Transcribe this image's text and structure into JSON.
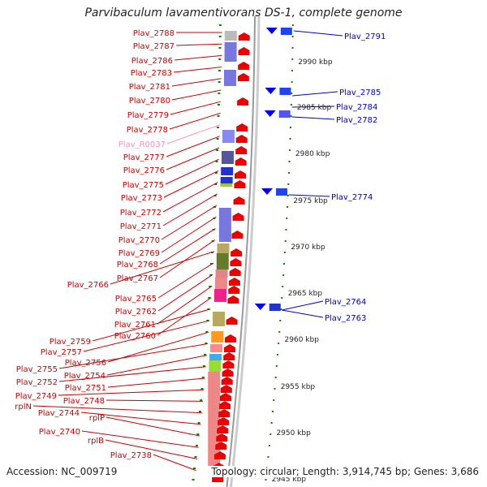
{
  "title": "Parvibaculum lavamentivorans DS-1, complete genome",
  "accession": "Accession: NC_009719",
  "topology": "Topology: circular; Length: 3,914,745 bp; Genes: 3,686",
  "colors": {
    "left_label": "#cc0000",
    "right_label": "#0000cc",
    "rna_label": "#ff8fbf",
    "feature_red": "#ee0000",
    "feature_blue": "#0000ee",
    "tick_green": "#008800",
    "backbone": "#999999"
  },
  "left_labels": [
    {
      "text": "Plav_2788"
    },
    {
      "text": "Plav_2787"
    },
    {
      "text": "Plav_2786"
    },
    {
      "text": "Plav_2783"
    },
    {
      "text": "Plav_2781"
    },
    {
      "text": "Plav_2780"
    },
    {
      "text": "Plav_2779"
    },
    {
      "text": "Plav_2778"
    },
    {
      "text": "Plav_R0037",
      "rna": true
    },
    {
      "text": "Plav_2777"
    },
    {
      "text": "Plav_2776"
    },
    {
      "text": "Plav_2775"
    },
    {
      "text": "Plav_2773"
    },
    {
      "text": "Plav_2772"
    },
    {
      "text": "Plav_2771"
    },
    {
      "text": "Plav_2770"
    },
    {
      "text": "Plav_2769"
    },
    {
      "text": "Plav_2768"
    },
    {
      "text": "Plav_2767"
    },
    {
      "text": "Plav_2766"
    },
    {
      "text": "Plav_2765"
    },
    {
      "text": "Plav_2762"
    },
    {
      "text": "Plav_2761"
    },
    {
      "text": "Plav_2760"
    },
    {
      "text": "Plav_2759"
    },
    {
      "text": "Plav_2757"
    },
    {
      "text": "Plav_2756"
    },
    {
      "text": "Plav_2755"
    },
    {
      "text": "Plav_2754"
    },
    {
      "text": "Plav_2752"
    },
    {
      "text": "Plav_2751"
    },
    {
      "text": "Plav_2749"
    },
    {
      "text": "Plav_2748"
    },
    {
      "text": "rplN"
    },
    {
      "text": "Plav_2744"
    },
    {
      "text": "rplP"
    },
    {
      "text": "Plav_2740"
    },
    {
      "text": "rplB"
    },
    {
      "text": "Plav_2738"
    }
  ],
  "right_labels": [
    {
      "text": "Plav_2791"
    },
    {
      "text": "Plav_2785"
    },
    {
      "text": "Plav_2784"
    },
    {
      "text": "Plav_2782"
    },
    {
      "text": "Plav_2774"
    },
    {
      "text": "Plav_2764"
    },
    {
      "text": "Plav_2763"
    }
  ],
  "scale_labels": [
    "2990 kbp",
    "2985 kbp",
    "2980 kbp",
    "2975 kbp",
    "2970 kbp",
    "2965 kbp",
    "2960 kbp",
    "2955 kbp",
    "2950 kbp",
    "2945 kbp"
  ]
}
